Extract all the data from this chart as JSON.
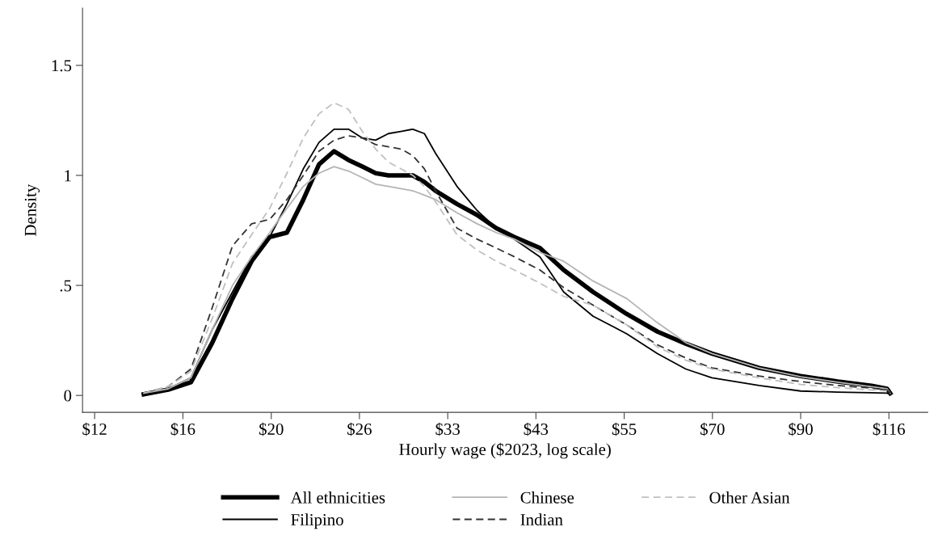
{
  "chart_data": {
    "type": "line",
    "xlabel": "Hourly wage ($2023, log scale)",
    "ylabel": "Density",
    "log": "x",
    "x": [
      14,
      15,
      16,
      17,
      18,
      19,
      20,
      21,
      22,
      23,
      24,
      25,
      26,
      27,
      28,
      29,
      30,
      31,
      32,
      34,
      36,
      38,
      40,
      43,
      46,
      50,
      55,
      60,
      65,
      70,
      80,
      90,
      100,
      110,
      115,
      116
    ],
    "series": [
      {
        "name": "All ethnicities",
        "color": "#000000",
        "line_style": "solid",
        "values": [
          0.005,
          0.026,
          0.06,
          0.24,
          0.44,
          0.61,
          0.72,
          0.74,
          0.89,
          1.05,
          1.11,
          1.07,
          1.04,
          1.01,
          1.0,
          1.0,
          1.0,
          0.97,
          0.93,
          0.87,
          0.82,
          0.76,
          0.72,
          0.67,
          0.57,
          0.47,
          0.37,
          0.29,
          0.235,
          0.19,
          0.125,
          0.088,
          0.063,
          0.044,
          0.03,
          0.01
        ]
      },
      {
        "name": "Filipino",
        "color": "#000000",
        "line_style": "solid",
        "values": [
          0.01,
          0.03,
          0.08,
          0.3,
          0.47,
          0.63,
          0.72,
          0.87,
          1.03,
          1.15,
          1.21,
          1.21,
          1.17,
          1.16,
          1.19,
          1.2,
          1.21,
          1.19,
          1.1,
          0.95,
          0.84,
          0.76,
          0.71,
          0.63,
          0.47,
          0.36,
          0.28,
          0.19,
          0.12,
          0.08,
          0.045,
          0.02,
          0.015,
          0.012,
          0.01,
          0.005
        ]
      },
      {
        "name": "Chinese",
        "color": "#b4b4b4",
        "line_style": "solid",
        "values": [
          0.01,
          0.03,
          0.08,
          0.3,
          0.5,
          0.63,
          0.74,
          0.85,
          0.95,
          1.01,
          1.04,
          1.02,
          0.99,
          0.96,
          0.95,
          0.94,
          0.93,
          0.91,
          0.89,
          0.83,
          0.78,
          0.74,
          0.71,
          0.65,
          0.61,
          0.52,
          0.44,
          0.33,
          0.24,
          0.19,
          0.125,
          0.085,
          0.06,
          0.04,
          0.03,
          0.01
        ]
      },
      {
        "name": "Indian",
        "color": "#333333",
        "line_style": "dashed",
        "values": [
          0.01,
          0.04,
          0.12,
          0.4,
          0.68,
          0.78,
          0.8,
          0.89,
          1.0,
          1.11,
          1.16,
          1.18,
          1.17,
          1.14,
          1.13,
          1.12,
          1.09,
          1.03,
          0.93,
          0.76,
          0.71,
          0.67,
          0.63,
          0.57,
          0.49,
          0.41,
          0.32,
          0.23,
          0.17,
          0.125,
          0.088,
          0.063,
          0.045,
          0.033,
          0.025,
          0.01
        ]
      },
      {
        "name": "Other Asian",
        "color": "#c0c0c0",
        "line_style": "dashed",
        "values": [
          0.01,
          0.04,
          0.11,
          0.35,
          0.6,
          0.73,
          0.85,
          1.01,
          1.17,
          1.28,
          1.33,
          1.3,
          1.2,
          1.12,
          1.06,
          1.03,
          1.0,
          0.95,
          0.88,
          0.73,
          0.66,
          0.61,
          0.57,
          0.51,
          0.45,
          0.41,
          0.32,
          0.22,
          0.16,
          0.12,
          0.08,
          0.05,
          0.035,
          0.025,
          0.02,
          0.01
        ]
      }
    ],
    "xlim": [
      11.77,
      129
    ],
    "xticks": [
      {
        "value": 12.18,
        "label": "$12"
      },
      {
        "value": 15.64,
        "label": "$16"
      },
      {
        "value": 20.09,
        "label": "$20"
      },
      {
        "value": 25.79,
        "label": "$26"
      },
      {
        "value": 33.12,
        "label": "$33"
      },
      {
        "value": 42.52,
        "label": "$43"
      },
      {
        "value": 54.6,
        "label": "$55"
      },
      {
        "value": 70.11,
        "label": "$70"
      },
      {
        "value": 90.02,
        "label": "$90"
      },
      {
        "value": 115.58,
        "label": "$116"
      }
    ],
    "ylim": [
      -0.077,
      1.76
    ],
    "yticks": [
      0,
      {
        "value": 0.5,
        "label": ".5"
      },
      1,
      1.5
    ],
    "grid": false,
    "legend": "bottom",
    "marker": "none"
  }
}
